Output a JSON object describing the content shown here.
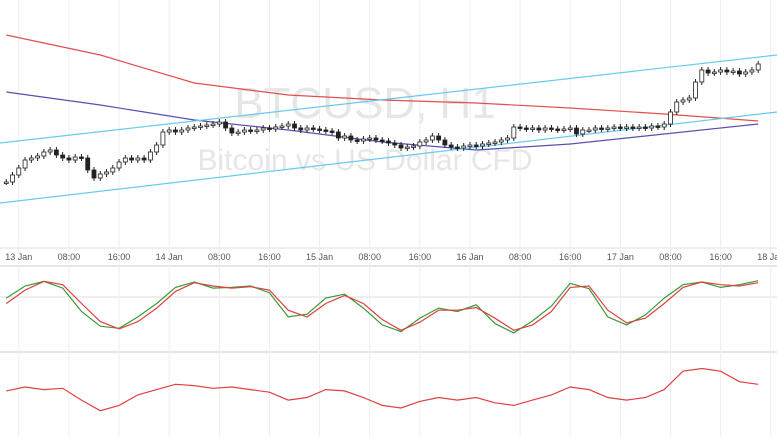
{
  "chart_data": {
    "type": "candlestick",
    "title": "BTCUSD, H1",
    "subtitle": "Bitcoin vs US Dollar CFD",
    "xlim": [
      -1,
      123
    ],
    "ylim": [
      0,
      240
    ],
    "xticks": [
      {
        "value": 2,
        "label": "13 Jan"
      },
      {
        "value": 10,
        "label": "08:00"
      },
      {
        "value": 18,
        "label": "16:00"
      },
      {
        "value": 26,
        "label": "14 Jan"
      },
      {
        "value": 34,
        "label": "08:00"
      },
      {
        "value": 42,
        "label": "16:00"
      },
      {
        "value": 50,
        "label": "15 Jan"
      },
      {
        "value": 58,
        "label": "08:00"
      },
      {
        "value": 66,
        "label": "16:00"
      },
      {
        "value": 74,
        "label": "16 Jan"
      },
      {
        "value": 82,
        "label": "08:00"
      },
      {
        "value": 90,
        "label": "16:00"
      },
      {
        "value": 98,
        "label": "17 Jan"
      },
      {
        "value": 106,
        "label": "08:00"
      },
      {
        "value": 114,
        "label": "16:00"
      },
      {
        "value": 122,
        "label": "18 Jan"
      }
    ],
    "closes": [
      58,
      65,
      72,
      80,
      82,
      84,
      88,
      90,
      85,
      82,
      80,
      83,
      82,
      70,
      62,
      66,
      68,
      72,
      78,
      82,
      80,
      82,
      80,
      88,
      95,
      108,
      110,
      108,
      110,
      112,
      113,
      114,
      115,
      116,
      118,
      112,
      107,
      108,
      110,
      109,
      110,
      112,
      111,
      113,
      114,
      116,
      112,
      110,
      112,
      111,
      110,
      109,
      108,
      102,
      104,
      100,
      99,
      101,
      102,
      100,
      99,
      97,
      95,
      92,
      93,
      94,
      98,
      100,
      104,
      100,
      95,
      93,
      92,
      94,
      95,
      94,
      96,
      97,
      98,
      100,
      102,
      113,
      112,
      111,
      112,
      110,
      112,
      111,
      110,
      111,
      112,
      106,
      110,
      110,
      112,
      111,
      112,
      113,
      112,
      113,
      112,
      113,
      112,
      114,
      113,
      116,
      128,
      138,
      140,
      142,
      158,
      170,
      167,
      168,
      170,
      168,
      169,
      166,
      168,
      170,
      176
    ],
    "overlays": [
      {
        "color": "#e05050",
        "x": [
          0,
          15,
          30,
          45,
          60,
          75,
          90,
          105,
          120
        ],
        "values": [
          205,
          185,
          157,
          145,
          140,
          137,
          132,
          126,
          119
        ]
      },
      {
        "color": "#5a4fb0",
        "x": [
          0,
          15,
          30,
          45,
          60,
          75,
          90,
          105,
          120
        ],
        "values": [
          148,
          135,
          120,
          110,
          98,
          90,
          96,
          106,
          116
        ]
      },
      {
        "color": "#66ccee",
        "x": [
          -1,
          123
        ],
        "values": [
          97,
          185
        ]
      },
      {
        "color": "#66ccee",
        "x": [
          -1,
          123
        ],
        "values": [
          37,
          128
        ]
      }
    ],
    "oscillator": {
      "ylim": [
        0,
        100
      ],
      "x": [
        0,
        3,
        6,
        9,
        12,
        15,
        18,
        21,
        24,
        27,
        30,
        33,
        36,
        39,
        42,
        45,
        48,
        51,
        54,
        57,
        60,
        63,
        66,
        69,
        72,
        75,
        78,
        81,
        84,
        87,
        90,
        93,
        96,
        99,
        102,
        105,
        108,
        111,
        114,
        117,
        120
      ],
      "series": [
        {
          "color": "#3a9a3a",
          "values": [
            70,
            88,
            95,
            85,
            50,
            28,
            25,
            42,
            62,
            86,
            94,
            85,
            86,
            88,
            78,
            42,
            46,
            70,
            76,
            55,
            30,
            20,
            40,
            55,
            50,
            60,
            32,
            18,
            36,
            58,
            92,
            84,
            42,
            30,
            45,
            70,
            90,
            94,
            86,
            90,
            96
          ]
        },
        {
          "color": "#e04040",
          "values": [
            62,
            82,
            95,
            90,
            62,
            35,
            24,
            35,
            55,
            80,
            93,
            88,
            85,
            87,
            82,
            52,
            42,
            62,
            74,
            62,
            38,
            22,
            34,
            52,
            52,
            56,
            40,
            22,
            30,
            50,
            86,
            88,
            52,
            33,
            40,
            62,
            86,
            94,
            90,
            88,
            93
          ]
        }
      ]
    },
    "rsi": {
      "ylim": [
        20,
        80
      ],
      "x": [
        0,
        3,
        6,
        9,
        12,
        15,
        18,
        21,
        24,
        27,
        30,
        33,
        36,
        39,
        42,
        45,
        48,
        51,
        54,
        57,
        60,
        63,
        66,
        69,
        72,
        75,
        78,
        81,
        84,
        87,
        90,
        93,
        96,
        99,
        102,
        105,
        108,
        111,
        114,
        117,
        120
      ],
      "color": "#e04040",
      "values": [
        55,
        58,
        56,
        57,
        48,
        40,
        44,
        52,
        56,
        60,
        59,
        57,
        58,
        56,
        54,
        48,
        50,
        56,
        55,
        50,
        44,
        42,
        47,
        50,
        48,
        50,
        46,
        44,
        48,
        52,
        58,
        56,
        50,
        48,
        50,
        56,
        70,
        72,
        70,
        62,
        60
      ]
    }
  }
}
